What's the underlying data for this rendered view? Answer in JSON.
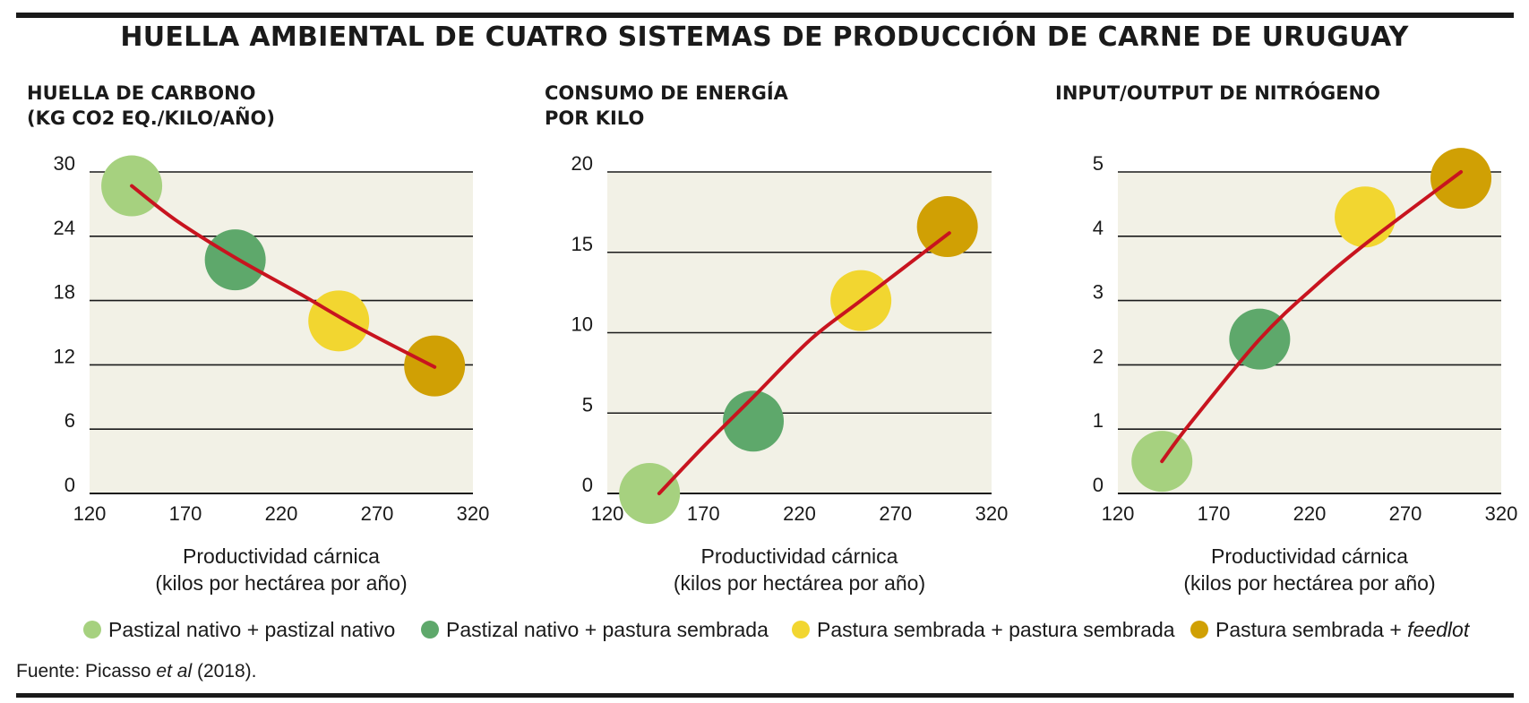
{
  "title": "HUELLA AMBIENTAL  DE CUATRO SISTEMAS DE PRODUCCIÓN DE CARNE DE URUGUAY",
  "colors": {
    "plot_bg": "#f2f1e6",
    "gridline": "#1a1a1a",
    "curve": "#c8141f",
    "series": [
      "#a6d17f",
      "#5ea86b",
      "#f2d630",
      "#d0a004"
    ]
  },
  "legend": {
    "items": [
      {
        "label": "Pastizal nativo + pastizal nativo",
        "color": "#a6d17f"
      },
      {
        "label": "Pastizal nativo + pastura sembrada",
        "color": "#5ea86b"
      },
      {
        "label": "Pastura sembrada + pastura sembrada",
        "color": "#f2d630"
      },
      {
        "label_prefix": "Pastura sembrada + ",
        "label_italic": "feedlot",
        "color": "#d0a004"
      }
    ]
  },
  "source": {
    "prefix": "Fuente: Picasso ",
    "italic": "et al",
    "suffix": " (2018)."
  },
  "panels": [
    {
      "title_lines": [
        "HUELLA DE CARBONO",
        "(KG CO2 EQ./KILO/AÑO)"
      ]
    },
    {
      "title_lines": [
        "CONSUMO DE ENERGÍA",
        "POR KILO"
      ]
    },
    {
      "title_lines": [
        "INPUT/OUTPUT DE NITRÓGENO"
      ]
    }
  ],
  "chart_data": [
    {
      "type": "scatter",
      "title": "HUELLA DE CARBONO (KG CO2 EQ./KILO/AÑO)",
      "xlabel": "Productividad cárnica\n(kilos por hectárea por año)",
      "ylabel": "",
      "xlim": [
        120,
        320
      ],
      "ylim": [
        0,
        30
      ],
      "xticks": [
        120,
        170,
        220,
        270,
        320
      ],
      "yticks": [
        0,
        6,
        12,
        18,
        24,
        30
      ],
      "grid": true,
      "points": [
        {
          "x": 142,
          "y": 28.7
        },
        {
          "x": 196,
          "y": 21.8
        },
        {
          "x": 250,
          "y": 16.1
        },
        {
          "x": 300,
          "y": 11.9
        }
      ],
      "trend": [
        [
          142,
          28.7
        ],
        [
          165,
          25.5
        ],
        [
          196,
          22.0
        ],
        [
          230,
          18.6
        ],
        [
          260,
          15.5
        ],
        [
          300,
          11.8
        ]
      ]
    },
    {
      "type": "scatter",
      "title": "CONSUMO DE ENERGÍA POR KILO",
      "xlabel": "Productividad cárnica\n(kilos por hectárea por año)",
      "ylabel": "",
      "xlim": [
        120,
        320
      ],
      "ylim": [
        0,
        20
      ],
      "xticks": [
        120,
        170,
        220,
        270,
        320
      ],
      "yticks": [
        0,
        5,
        10,
        15,
        20
      ],
      "grid": true,
      "points": [
        {
          "x": 142,
          "y": 0.0
        },
        {
          "x": 196,
          "y": 4.5
        },
        {
          "x": 252,
          "y": 12.0
        },
        {
          "x": 297,
          "y": 16.6
        }
      ],
      "trend": [
        [
          147,
          0.0
        ],
        [
          170,
          2.9
        ],
        [
          196,
          6.0
        ],
        [
          226,
          9.6
        ],
        [
          252,
          12.0
        ],
        [
          298,
          16.2
        ]
      ]
    },
    {
      "type": "scatter",
      "title": "INPUT/OUTPUT DE NITRÓGENO",
      "xlabel": "Productividad cárnica\n(kilos por hectárea por año)",
      "ylabel": "",
      "xlim": [
        120,
        320
      ],
      "ylim": [
        0,
        5
      ],
      "xticks": [
        120,
        170,
        220,
        270,
        320
      ],
      "yticks": [
        0,
        1,
        2,
        3,
        4,
        5
      ],
      "grid": true,
      "points": [
        {
          "x": 143,
          "y": 0.5
        },
        {
          "x": 194,
          "y": 2.4
        },
        {
          "x": 249,
          "y": 4.3
        },
        {
          "x": 299,
          "y": 4.9
        }
      ],
      "trend": [
        [
          143,
          0.5
        ],
        [
          158,
          1.1
        ],
        [
          194,
          2.4
        ],
        [
          222,
          3.2
        ],
        [
          250,
          3.9
        ],
        [
          299,
          5.0
        ]
      ]
    }
  ]
}
